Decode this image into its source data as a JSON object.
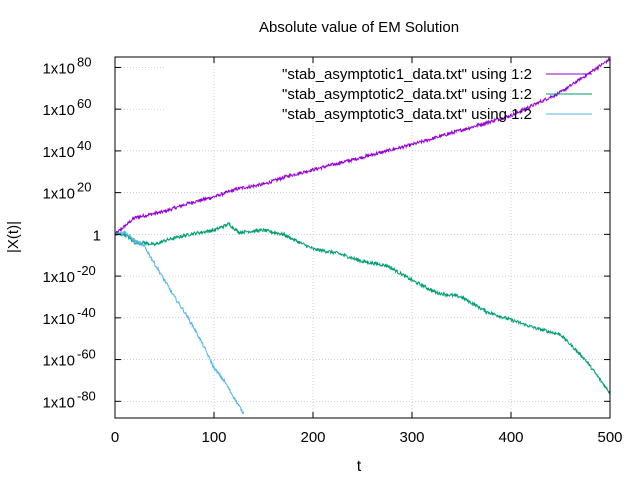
{
  "chart_data": {
    "type": "line",
    "title": "Absolute value of EM Solution",
    "xlabel": "t",
    "ylabel": "|X(t)|",
    "x_scale": "linear",
    "y_scale": "log",
    "xlim": [
      0,
      500
    ],
    "ylim_log10": [
      -88,
      85
    ],
    "x_ticks": [
      0,
      100,
      200,
      300,
      400,
      500
    ],
    "x_tick_labels": [
      "0",
      "100",
      "200",
      "300",
      "400",
      "500"
    ],
    "y_ticks_log10": [
      80,
      60,
      40,
      20,
      0,
      -20,
      -40,
      -60,
      -80
    ],
    "y_tick_labels": [
      {
        "base": "1x10",
        "exp": "80"
      },
      {
        "base": "1x10",
        "exp": "60"
      },
      {
        "base": "1x10",
        "exp": "40"
      },
      {
        "base": "1x10",
        "exp": "20"
      },
      {
        "base": "1",
        "exp": ""
      },
      {
        "base": "1x10",
        "exp": "-20"
      },
      {
        "base": "1x10",
        "exp": "-40"
      },
      {
        "base": "1x10",
        "exp": "-60"
      },
      {
        "base": "1x10",
        "exp": "-80"
      }
    ],
    "grid": true,
    "legend_position": "top-right",
    "series": [
      {
        "name": "\"stab_asymptotic1_data.txt\" using 1:2",
        "color": "#9400d3",
        "x": [
          0,
          10,
          20,
          30,
          50,
          75,
          100,
          125,
          150,
          175,
          200,
          250,
          300,
          350,
          400,
          450,
          500
        ],
        "log10_y": [
          0,
          4,
          8,
          9,
          11,
          15,
          18,
          22,
          24,
          28,
          31,
          37,
          43,
          50,
          57,
          68,
          84
        ]
      },
      {
        "name": "\"stab_asymptotic2_data.txt\" using 1:2",
        "color": "#009e73",
        "x": [
          0,
          10,
          20,
          30,
          40,
          50,
          75,
          100,
          115,
          125,
          150,
          170,
          200,
          225,
          250,
          275,
          300,
          325,
          350,
          375,
          400,
          425,
          450,
          475,
          500
        ],
        "log10_y": [
          0,
          0,
          -4,
          -4,
          -5,
          -3,
          0,
          2,
          5,
          1,
          2,
          0,
          -7,
          -9,
          -13,
          -15,
          -22,
          -28,
          -30,
          -37,
          -41,
          -45,
          -48,
          -60,
          -76
        ]
      },
      {
        "name": "\"stab_asymptotic3_data.txt\" using 1:2",
        "color": "#56b4e9",
        "x": [
          0,
          10,
          20,
          30,
          40,
          50,
          60,
          70,
          80,
          90,
          100,
          110,
          120,
          130
        ],
        "log10_y": [
          0,
          1,
          -3,
          -6,
          -14,
          -22,
          -30,
          -37,
          -45,
          -54,
          -64,
          -70,
          -78,
          -86
        ]
      }
    ]
  }
}
